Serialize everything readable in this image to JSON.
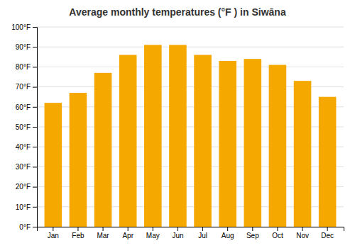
{
  "chart_data": {
    "type": "bar",
    "title": "Average monthly temperatures (°F ) in Siwāna",
    "categories": [
      "Jan",
      "Feb",
      "Mar",
      "Apr",
      "May",
      "Jun",
      "Jul",
      "Aug",
      "Sep",
      "Oct",
      "Nov",
      "Dec"
    ],
    "values": [
      62,
      67,
      77,
      86,
      91,
      91,
      86,
      83,
      84,
      81,
      73,
      65
    ],
    "color": "#F5A800",
    "ylim": [
      0,
      100
    ],
    "yticks": [
      {
        "value": 0,
        "label": "0°F"
      },
      {
        "value": 10,
        "label": "10°F"
      },
      {
        "value": 20,
        "label": "20°F"
      },
      {
        "value": 30,
        "label": "30°F"
      },
      {
        "value": 40,
        "label": "40°F"
      },
      {
        "value": 50,
        "label": "50°F"
      },
      {
        "value": 60,
        "label": "60°F"
      },
      {
        "value": 70,
        "label": "70°F"
      },
      {
        "value": 80,
        "label": "80°F"
      },
      {
        "value": 90,
        "label": "90°F"
      },
      {
        "value": 100,
        "label": "100°F"
      }
    ],
    "grid": true
  }
}
